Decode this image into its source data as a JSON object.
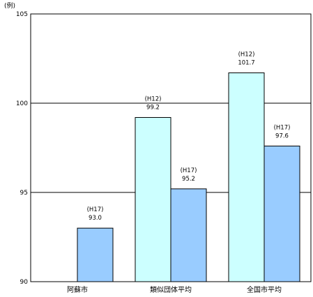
{
  "chart_data": {
    "type": "bar",
    "unit": "(例)",
    "categories": [
      "阿蘇市",
      "類似団体平均",
      "全国市平均"
    ],
    "ylim": [
      90,
      105
    ],
    "yticks": [
      90,
      95,
      100,
      105
    ],
    "grid": true,
    "series": [
      {
        "values": [
          null,
          99.2,
          101.7
        ],
        "labels": [
          "",
          "(H12)\n99.2",
          "(H12)\n101.7"
        ],
        "color": "#ccffff"
      },
      {
        "values": [
          93.0,
          95.2,
          97.6
        ],
        "labels": [
          "(H17)\n93.0",
          "(H17)\n95.2",
          "(H17)\n97.6"
        ],
        "color": "#99ccff"
      }
    ]
  }
}
